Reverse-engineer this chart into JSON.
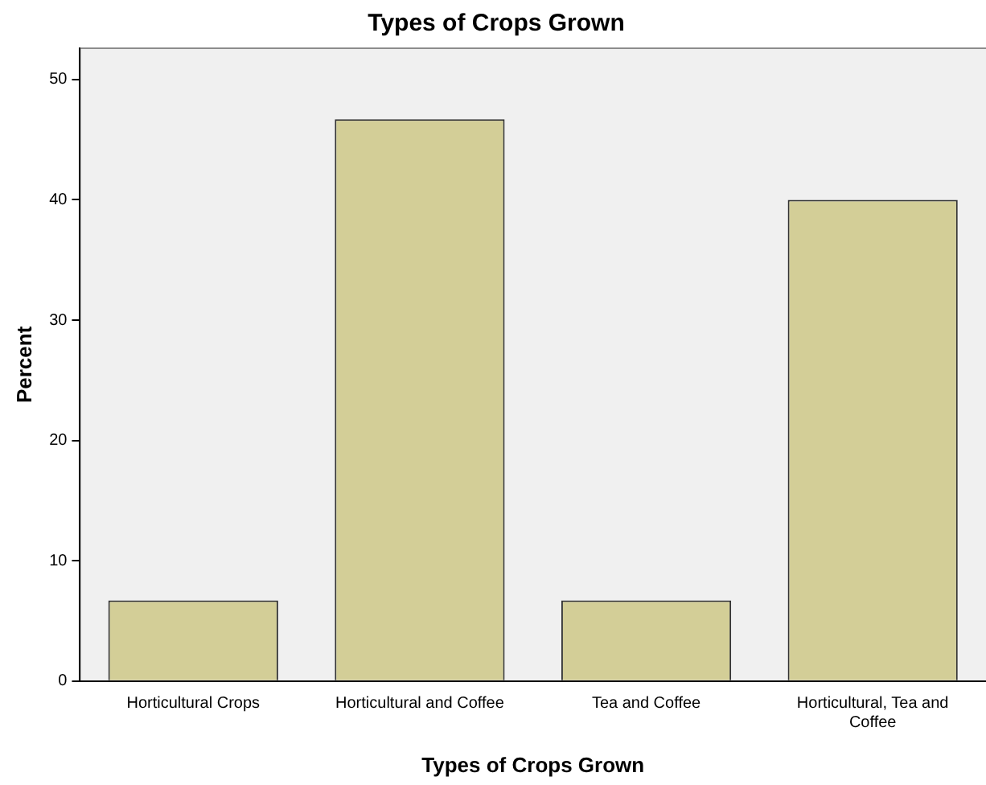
{
  "chart_data": {
    "type": "bar",
    "title": "Types of Crops Grown",
    "xlabel": "Types of Crops Grown",
    "ylabel": "Percent",
    "categories": [
      "Horticultural Crops",
      "Horticultural and Coffee",
      "Tea and Coffee",
      "Horticultural, Tea and Coffee"
    ],
    "values": [
      6.7,
      46.7,
      6.7,
      40.0
    ],
    "color": "#d3ce97",
    "ylim": [
      0,
      52.6
    ],
    "yticks": [
      0,
      10,
      20,
      30,
      40,
      50
    ],
    "grid": false,
    "legend": false
  }
}
